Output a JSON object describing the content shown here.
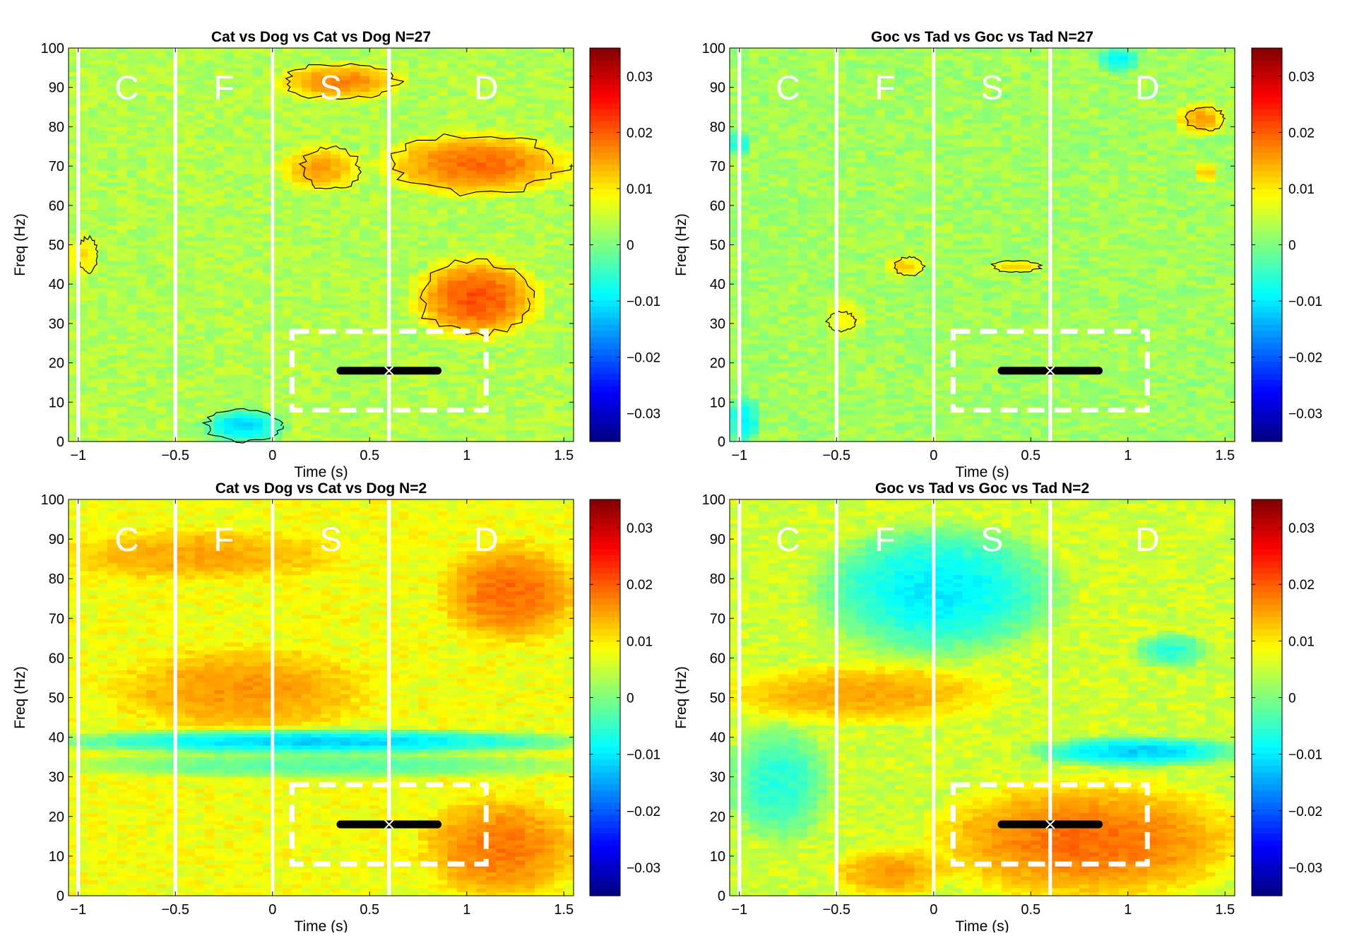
{
  "common": {
    "xlabel": "Time (s)",
    "ylabel": "Freq (Hz)",
    "xlim": [
      -1.05,
      1.55
    ],
    "ylim": [
      0,
      100
    ],
    "xticks": [
      -1,
      -0.5,
      0,
      0.5,
      1,
      1.5
    ],
    "xtick_labels": [
      "−1",
      "−0.5",
      "0",
      "0.5",
      "1",
      "1.5"
    ],
    "yticks": [
      0,
      10,
      20,
      30,
      40,
      50,
      60,
      70,
      80,
      90,
      100
    ],
    "ytick_labels": [
      "0",
      "10",
      "20",
      "30",
      "40",
      "50",
      "60",
      "70",
      "80",
      "90",
      "100"
    ],
    "clim": [
      -0.035,
      0.035
    ],
    "cticks": [
      0.03,
      0.02,
      0.01,
      0,
      -0.01,
      -0.02,
      -0.03
    ],
    "ctick_labels": [
      "0.03",
      "0.02",
      "0.01",
      "0",
      "−0.01",
      "−0.02",
      "−0.03"
    ],
    "colormap": "jet",
    "phase_boundaries": [
      -1,
      -0.5,
      0,
      0.6
    ],
    "phase_labels": [
      {
        "label": "C",
        "x": -0.75
      },
      {
        "label": "F",
        "x": -0.25
      },
      {
        "label": "S",
        "x": 0.3
      },
      {
        "label": "D",
        "x": 1.1
      }
    ],
    "roi_box": {
      "x0": 0.1,
      "x1": 1.1,
      "y0": 8,
      "y1": 28
    },
    "marker": {
      "x_start": 0.35,
      "x_end": 0.85,
      "x_center": 0.6,
      "freq": 18
    }
  },
  "chart_data": [
    {
      "type": "heatmap",
      "title": "Cat vs Dog vs Cat vs Dog N=27",
      "base_value": 0.0035,
      "blobs": [
        {
          "t0": 0.05,
          "t1": 0.65,
          "f0": 87,
          "f1": 96,
          "value": 0.017
        },
        {
          "t0": 0.05,
          "t1": 0.45,
          "f0": 64,
          "f1": 75,
          "value": 0.015
        },
        {
          "t0": 0.6,
          "t1": 1.5,
          "f0": 63,
          "f1": 78,
          "value": 0.019
        },
        {
          "t0": 0.75,
          "t1": 1.35,
          "f0": 27,
          "f1": 46,
          "value": 0.021
        },
        {
          "t0": -1.05,
          "t1": -0.9,
          "f0": 42,
          "f1": 52,
          "value": 0.011
        },
        {
          "t0": -0.35,
          "t1": 0.05,
          "f0": 0,
          "f1": 8,
          "value": -0.011
        }
      ],
      "contours": [
        {
          "t0": 0.05,
          "t1": 0.65,
          "f0": 87,
          "f1": 96
        },
        {
          "t0": 0.15,
          "t1": 0.45,
          "f0": 64,
          "f1": 75
        },
        {
          "t0": 0.6,
          "t1": 1.5,
          "f0": 63,
          "f1": 78
        },
        {
          "t0": 0.75,
          "t1": 1.35,
          "f0": 27,
          "f1": 46
        },
        {
          "t0": -1.0,
          "t1": -0.9,
          "f0": 43,
          "f1": 52
        },
        {
          "t0": -0.35,
          "t1": 0.05,
          "f0": 0,
          "f1": 8
        }
      ]
    },
    {
      "type": "heatmap",
      "title": "Goc vs Tad vs Goc vs Tad N=27",
      "base_value": 0.0025,
      "blobs": [
        {
          "t0": 1.25,
          "t1": 1.5,
          "f0": 78,
          "f1": 86,
          "value": 0.015
        },
        {
          "t0": 1.35,
          "t1": 1.45,
          "f0": 66,
          "f1": 71,
          "value": 0.013
        },
        {
          "t0": -1.05,
          "t1": -0.9,
          "f0": 0,
          "f1": 11,
          "value": -0.01
        },
        {
          "t0": -1.05,
          "t1": -0.95,
          "f0": 73,
          "f1": 79,
          "value": -0.008
        },
        {
          "t0": 0.85,
          "t1": 1.05,
          "f0": 94,
          "f1": 100,
          "value": -0.009
        },
        {
          "t0": -0.55,
          "t1": -0.35,
          "f0": 27,
          "f1": 36,
          "value": 0.009
        },
        {
          "t0": -0.25,
          "t1": -0.05,
          "f0": 42,
          "f1": 47,
          "value": 0.012
        },
        {
          "t0": 0.3,
          "t1": 0.55,
          "f0": 43,
          "f1": 46,
          "value": 0.012
        }
      ],
      "contours": [
        {
          "t0": 1.3,
          "t1": 1.5,
          "f0": 79,
          "f1": 85
        },
        {
          "t0": -0.2,
          "t1": -0.05,
          "f0": 42,
          "f1": 47
        },
        {
          "t0": 0.3,
          "t1": 0.55,
          "f0": 43,
          "f1": 46
        },
        {
          "t0": -0.55,
          "t1": -0.4,
          "f0": 28,
          "f1": 33
        }
      ]
    },
    {
      "type": "heatmap",
      "title": "Cat vs Dog vs Cat vs Dog N=2",
      "base_value": 0.008,
      "blobs": [
        {
          "t0": -1.05,
          "t1": 0.3,
          "f0": 80,
          "f1": 92,
          "value": 0.015
        },
        {
          "t0": -0.75,
          "t1": 0.45,
          "f0": 42,
          "f1": 62,
          "value": 0.016
        },
        {
          "t0": -1.05,
          "t1": 1.55,
          "f0": 36,
          "f1": 42,
          "value": -0.012
        },
        {
          "t0": -1.05,
          "t1": 1.55,
          "f0": 30,
          "f1": 36,
          "value": -0.003
        },
        {
          "t0": 0.9,
          "t1": 1.55,
          "f0": 65,
          "f1": 88,
          "value": 0.019
        },
        {
          "t0": 0.8,
          "t1": 1.55,
          "f0": 0,
          "f1": 24,
          "value": 0.018
        }
      ],
      "contours": []
    },
    {
      "type": "heatmap",
      "title": "Goc vs Tad vs Goc vs Tad N=2",
      "base_value": 0.0055,
      "blobs": [
        {
          "t0": -0.55,
          "t1": 0.6,
          "f0": 62,
          "f1": 92,
          "value": -0.01
        },
        {
          "t0": -1.05,
          "t1": -0.55,
          "f0": 15,
          "f1": 42,
          "value": -0.006
        },
        {
          "t0": -1.05,
          "t1": 0.3,
          "f0": 44,
          "f1": 58,
          "value": 0.015
        },
        {
          "t0": 0.55,
          "t1": 1.55,
          "f0": 33,
          "f1": 40,
          "value": -0.012
        },
        {
          "t0": 0.05,
          "t1": 1.55,
          "f0": 0,
          "f1": 28,
          "value": 0.019
        },
        {
          "t0": -0.5,
          "t1": 0.05,
          "f0": 0,
          "f1": 12,
          "value": 0.016
        },
        {
          "t0": 1.05,
          "t1": 1.4,
          "f0": 58,
          "f1": 66,
          "value": -0.006
        }
      ],
      "contours": []
    }
  ]
}
